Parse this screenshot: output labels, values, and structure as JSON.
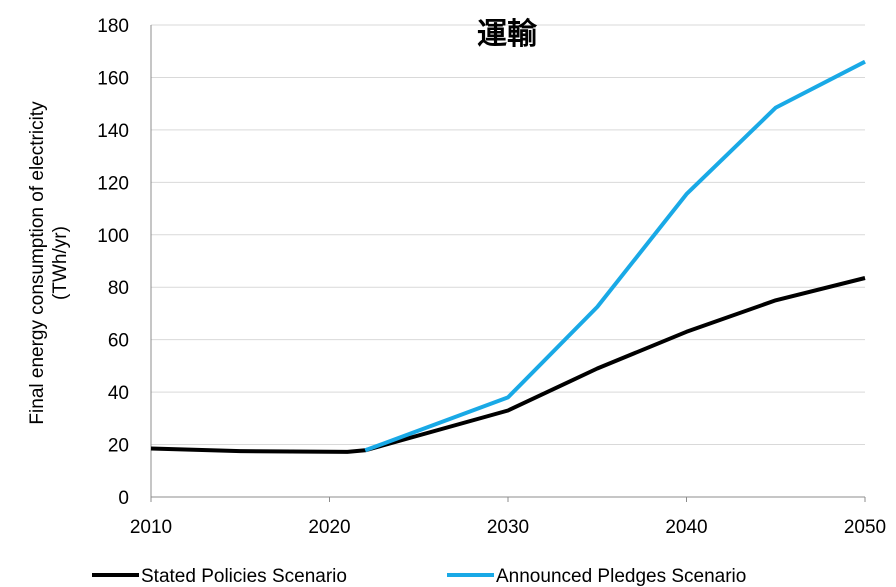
{
  "chart_data": {
    "type": "line",
    "title": "運輸",
    "ylabel": [
      "Final energy consumption of electricity",
      "(TWh/yr)"
    ],
    "xlabel": "",
    "xlim": [
      2010,
      2050
    ],
    "ylim": [
      0,
      180
    ],
    "xticks": [
      2010,
      2020,
      2030,
      2040,
      2050
    ],
    "yticks": [
      0,
      20,
      40,
      60,
      80,
      100,
      120,
      140,
      160,
      180
    ],
    "grid": "horizontal",
    "legend_position": "bottom",
    "series": [
      {
        "name": "Stated Policies Scenario",
        "color": "#000000",
        "x": [
          2010,
          2015,
          2021,
          2022,
          2030,
          2035,
          2040,
          2045,
          2050
        ],
        "y": [
          18.5,
          17.5,
          17.2,
          17.8,
          33,
          49,
          63,
          75,
          83.5
        ]
      },
      {
        "name": "Announced Pledges Scenario",
        "color": "#19a9e6",
        "x": [
          2022,
          2030,
          2035,
          2040,
          2045,
          2050
        ],
        "y": [
          17.8,
          38,
          72.5,
          115.5,
          148.5,
          166
        ]
      }
    ]
  }
}
